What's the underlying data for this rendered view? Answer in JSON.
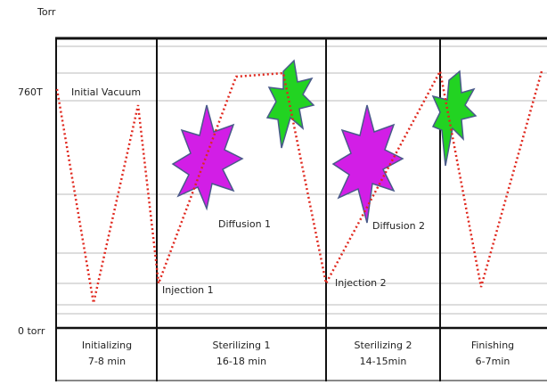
{
  "axis": {
    "unit": "Torr",
    "top_label": "760T",
    "bottom_label": "0 torr"
  },
  "annotations": [
    "Initial Vacuum",
    "Diffusion 1",
    "Diffusion 2",
    "Injection 1",
    "Injection 2"
  ],
  "phases": [
    {
      "name": "Initializing",
      "duration": "7-8 min"
    },
    {
      "name": "Sterilizing 1",
      "duration": "16-18 min"
    },
    {
      "name": "Sterilizing 2",
      "duration": "14-15min"
    },
    {
      "name": "Finishing",
      "duration": "6-7min"
    }
  ]
}
